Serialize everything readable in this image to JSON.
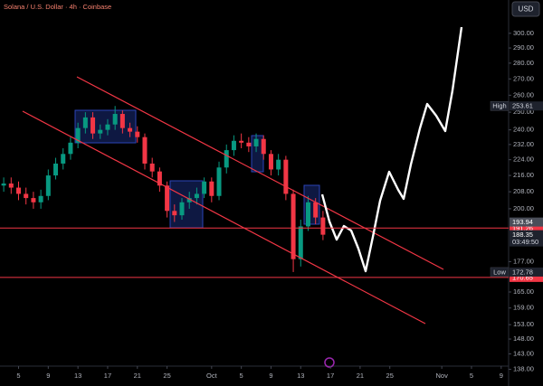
{
  "chart_data": {
    "type": "candlestick",
    "title": "Solana / U.S. Dollar · 4h · Coinbase",
    "currency_button": "USD",
    "log_scale": true,
    "grid": false,
    "up_color": "#089981",
    "down_color": "#f23645",
    "x": [
      3,
      4,
      5,
      6,
      7,
      8,
      9,
      10,
      11,
      12,
      13,
      14,
      15,
      16,
      17,
      18,
      19,
      20,
      21,
      22,
      23,
      24,
      25,
      26,
      27,
      28,
      29,
      30,
      31,
      32,
      33,
      34,
      35,
      36,
      37,
      38,
      39,
      40,
      41,
      42,
      43,
      44,
      45,
      46
    ],
    "open": [
      211,
      212,
      210,
      207,
      205,
      203,
      206,
      216,
      222,
      227,
      233,
      241,
      247,
      238,
      240,
      243,
      249,
      241,
      239,
      236,
      222,
      218,
      211,
      199,
      197,
      203,
      205,
      207,
      213,
      206,
      220,
      229,
      234,
      233,
      231,
      235,
      227,
      219,
      224,
      207,
      178,
      192,
      203,
      196
    ],
    "high": [
      215,
      215,
      213,
      210,
      208,
      209,
      219,
      225,
      230,
      236,
      244,
      250,
      250,
      243,
      246,
      253.61,
      251,
      244,
      242,
      238,
      225,
      220,
      213,
      202,
      205,
      208,
      210,
      215,
      215,
      223,
      232,
      237,
      238,
      236,
      238,
      237,
      229,
      227,
      226,
      209,
      195,
      206,
      205,
      199
    ],
    "low": [
      208,
      207,
      204,
      202,
      200,
      200,
      204,
      214,
      219,
      224,
      230,
      238,
      235,
      235,
      237,
      240,
      238,
      236,
      233,
      219,
      215,
      208,
      196,
      194,
      195,
      200,
      202,
      205,
      203,
      204,
      217,
      226,
      230,
      228,
      228,
      224,
      216,
      216,
      204,
      172.78,
      175,
      190,
      193,
      186
    ],
    "close": [
      212,
      210,
      207,
      205,
      203,
      206,
      216,
      222,
      227,
      233,
      241,
      247,
      238,
      240,
      243,
      249,
      241,
      239,
      236,
      222,
      218,
      211,
      199,
      197,
      203,
      205,
      207,
      213,
      206,
      220,
      229,
      234,
      233,
      231,
      235,
      227,
      219,
      224,
      207,
      178,
      192,
      203,
      196,
      188.35
    ],
    "xlim": [
      2.5,
      71
    ],
    "xticks": [
      {
        "value": 5,
        "label": "5"
      },
      {
        "value": 9,
        "label": "9"
      },
      {
        "value": 13,
        "label": "13"
      },
      {
        "value": 17,
        "label": "17"
      },
      {
        "value": 21,
        "label": "21"
      },
      {
        "value": 25,
        "label": "25"
      },
      {
        "value": 31,
        "label": "Oct"
      },
      {
        "value": 35,
        "label": "5"
      },
      {
        "value": 39,
        "label": "9"
      },
      {
        "value": 43,
        "label": "13"
      },
      {
        "value": 47,
        "label": "17"
      },
      {
        "value": 51,
        "label": "21"
      },
      {
        "value": 55,
        "label": "25"
      },
      {
        "value": 62,
        "label": "Nov"
      },
      {
        "value": 66,
        "label": "5"
      },
      {
        "value": 70,
        "label": "9"
      }
    ],
    "ylim": [
      137,
      324
    ],
    "yticks": [
      {
        "value": 300,
        "label": "300.00"
      },
      {
        "value": 290,
        "label": "290.00"
      },
      {
        "value": 280,
        "label": "280.00"
      },
      {
        "value": 270,
        "label": "270.00"
      },
      {
        "value": 260,
        "label": "260.00"
      },
      {
        "value": 250,
        "label": "250.00"
      },
      {
        "value": 240,
        "label": "240.00"
      },
      {
        "value": 232,
        "label": "232.00"
      },
      {
        "value": 224,
        "label": "224.00"
      },
      {
        "value": 216,
        "label": "216.00"
      },
      {
        "value": 208,
        "label": "208.00"
      },
      {
        "value": 200,
        "label": "200.00"
      },
      {
        "value": 177,
        "label": "177.00"
      },
      {
        "value": 165,
        "label": "165.00"
      },
      {
        "value": 159,
        "label": "159.00"
      },
      {
        "value": 153,
        "label": "153.00"
      },
      {
        "value": 148,
        "label": "148.00"
      },
      {
        "value": 143,
        "label": "143.00"
      },
      {
        "value": 138,
        "label": "138.00"
      }
    ],
    "high_marker": {
      "name": "High",
      "value": 253.61
    },
    "low_marker": {
      "name": "Low",
      "value": 172.78
    },
    "levels": [
      {
        "value": 191.26,
        "color": "#f23645"
      },
      {
        "value": 170.65,
        "color": "#f23645"
      }
    ],
    "price_tags": [
      {
        "value": 193.94,
        "color": "#4a4e59"
      },
      {
        "value": 188.35,
        "color": "#1e222d",
        "countdown": "03:49:50"
      }
    ]
  }
}
